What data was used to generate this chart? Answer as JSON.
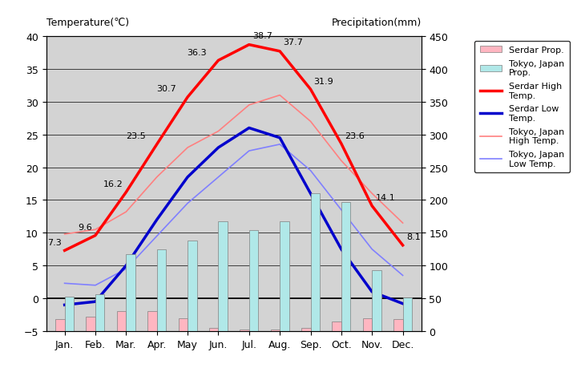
{
  "months": [
    "Jan.",
    "Feb.",
    "Mar.",
    "Apr.",
    "May",
    "Jun.",
    "Jul.",
    "Aug.",
    "Sep.",
    "Oct.",
    "Nov.",
    "Dec."
  ],
  "serdar_high": [
    7.3,
    9.6,
    16.2,
    23.5,
    30.7,
    36.3,
    38.7,
    37.7,
    31.9,
    23.6,
    14.1,
    8.1
  ],
  "serdar_low": [
    -1.0,
    -0.5,
    5.0,
    12.0,
    18.5,
    23.0,
    26.0,
    24.5,
    16.0,
    7.5,
    1.0,
    -0.8
  ],
  "tokyo_high": [
    9.8,
    10.5,
    13.2,
    18.5,
    23.0,
    25.5,
    29.5,
    31.0,
    27.0,
    21.0,
    16.0,
    11.5
  ],
  "tokyo_low": [
    2.3,
    2.0,
    4.5,
    9.5,
    14.5,
    18.5,
    22.5,
    23.5,
    19.5,
    13.5,
    7.5,
    3.5
  ],
  "tokyo_precip_mm": [
    52,
    56,
    117,
    125,
    138,
    168,
    154,
    168,
    210,
    197,
    93,
    51
  ],
  "serdar_precip_mm": [
    18,
    22,
    30,
    30,
    20,
    5,
    3,
    3,
    5,
    15,
    20,
    18
  ],
  "title_left": "Temperature(℃)",
  "title_right": "Precipitation(mm)",
  "ylim_left": [
    -5,
    40
  ],
  "ylim_right": [
    0,
    450
  ],
  "bg_color": "#d3d3d3",
  "plot_bg_color": "#c8c8c8",
  "serdar_high_color": "#ff0000",
  "serdar_low_color": "#0000cc",
  "tokyo_high_color": "#ff8080",
  "tokyo_low_color": "#8080ff",
  "serdar_precip_color": "#ffb6c1",
  "tokyo_precip_color": "#b0e8e8",
  "annotation_serdar_high": [
    "7.3",
    "9.6",
    "16.2",
    "23.5",
    "30.7",
    "36.3",
    "38.7",
    "37.7",
    "31.9",
    "23.6",
    "14.1",
    "8.1"
  ],
  "gridline_color": "black",
  "bar_width": 0.3,
  "figsize": [
    7.2,
    4.6
  ],
  "dpi": 100
}
